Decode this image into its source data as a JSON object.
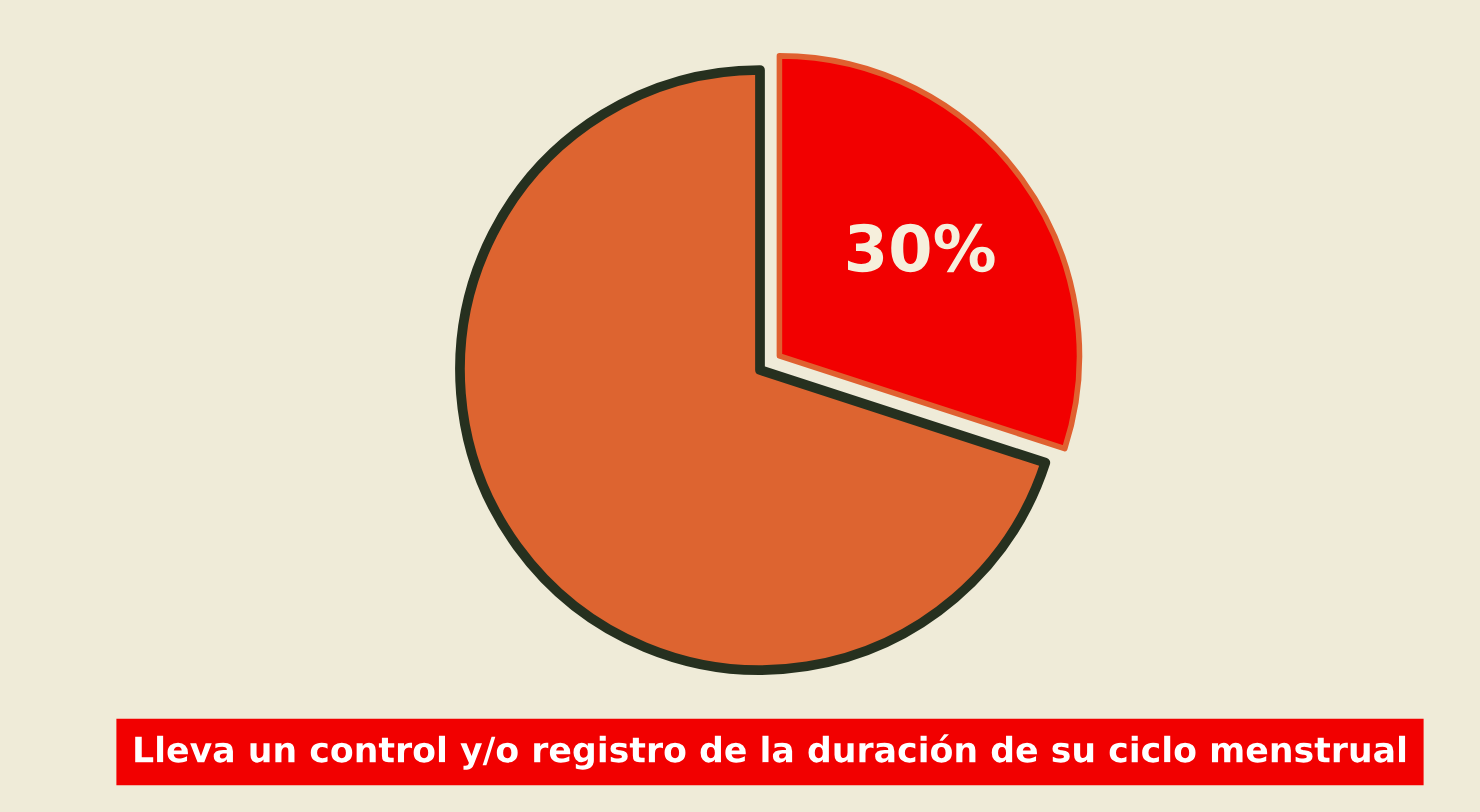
{
  "chart_data": {
    "type": "pie",
    "title": "Lleva un control y/o registro de la duración de su ciclo menstrual",
    "categories": [
      null,
      null
    ],
    "values": [
      30,
      70
    ],
    "colors": [
      "#f20000",
      "#dd6430"
    ],
    "value_labels": [
      "30%",
      null
    ]
  }
}
